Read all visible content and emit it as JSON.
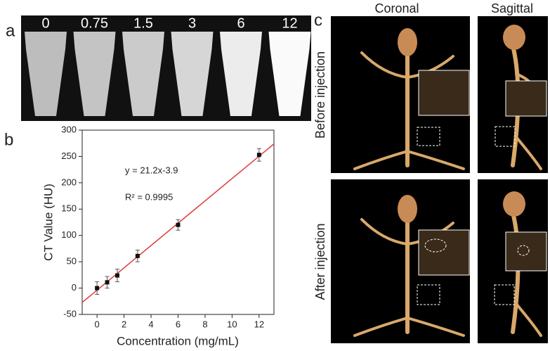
{
  "panel_a": {
    "label": "a",
    "concentrations": [
      "0",
      "0.75",
      "1.5",
      "3",
      "6",
      "12"
    ]
  },
  "chart_data": {
    "type": "scatter",
    "label": "b",
    "x_label": "Concentration (mg/mL)",
    "y_label": "CT Value (HU)",
    "x": [
      0,
      0.75,
      1.5,
      3,
      6,
      12
    ],
    "series": [
      {
        "values": [
          0,
          11,
          24,
          61,
          120,
          253
        ],
        "errors": [
          12,
          11,
          12,
          11,
          10,
          12
        ],
        "color": "#111111"
      }
    ],
    "fit": {
      "slope": 21.2,
      "intercept": -3.9,
      "color": "#e03a3a"
    },
    "annotations": [
      "y = 21.2x-3.9",
      "R² = 0.9995"
    ],
    "xlim": [
      -1.1,
      13.1
    ],
    "xticks": [
      0,
      2,
      4,
      6,
      8,
      10,
      12
    ],
    "ylim": [
      -50,
      300
    ],
    "yticks": [
      -50,
      0,
      50,
      100,
      150,
      200,
      250,
      300
    ],
    "grid": false
  },
  "panel_c": {
    "label": "c",
    "columns": [
      "Coronal",
      "Sagittal"
    ],
    "rows": [
      "Before injection",
      "After injection"
    ]
  }
}
